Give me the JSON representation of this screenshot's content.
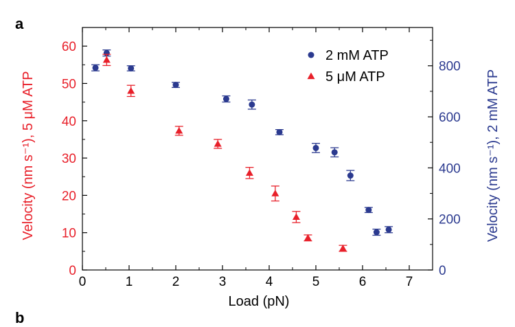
{
  "panels": {
    "a": "a",
    "b": "b"
  },
  "chart_data": {
    "type": "scatter",
    "xlabel": "Load (pN)",
    "xlim": [
      0,
      7.5
    ],
    "xticks": [
      0,
      1,
      2,
      3,
      4,
      5,
      6,
      7
    ],
    "ylabel_left": "Velocity (nm s⁻¹), 5 μM ATP",
    "ylim_left": [
      0,
      65
    ],
    "yticks_left": [
      0,
      10,
      20,
      30,
      40,
      50,
      60
    ],
    "ylabel_right": "Velocity (nm s⁻¹), 2 mM ATP",
    "ylim_right": [
      0,
      950
    ],
    "yticks_right": [
      0,
      200,
      400,
      600,
      800
    ],
    "legend_position": "top-right",
    "grid": false,
    "series": [
      {
        "name": "2 mM ATP",
        "axis": "right",
        "marker": "circle",
        "color": "#2b3a8f",
        "points": [
          {
            "x": 0.28,
            "y": 792,
            "err": 12
          },
          {
            "x": 0.52,
            "y": 850,
            "err": 12
          },
          {
            "x": 1.04,
            "y": 790,
            "err": 10
          },
          {
            "x": 2.0,
            "y": 725,
            "err": 10
          },
          {
            "x": 3.08,
            "y": 670,
            "err": 12
          },
          {
            "x": 3.63,
            "y": 648,
            "err": 18
          },
          {
            "x": 4.22,
            "y": 540,
            "err": 10
          },
          {
            "x": 5.0,
            "y": 478,
            "err": 18
          },
          {
            "x": 5.4,
            "y": 461,
            "err": 18
          },
          {
            "x": 5.74,
            "y": 370,
            "err": 20
          },
          {
            "x": 6.13,
            "y": 235,
            "err": 10
          },
          {
            "x": 6.3,
            "y": 148,
            "err": 12
          },
          {
            "x": 6.56,
            "y": 158,
            "err": 12
          }
        ]
      },
      {
        "name": "5 μM ATP",
        "axis": "left",
        "marker": "triangle",
        "color": "#e8202a",
        "points": [
          {
            "x": 0.52,
            "y": 56.3,
            "err": 1.5
          },
          {
            "x": 1.04,
            "y": 48.0,
            "err": 1.5
          },
          {
            "x": 2.07,
            "y": 37.3,
            "err": 1.2
          },
          {
            "x": 2.9,
            "y": 33.8,
            "err": 1.2
          },
          {
            "x": 3.58,
            "y": 26.0,
            "err": 1.5
          },
          {
            "x": 4.13,
            "y": 20.5,
            "err": 2.0
          },
          {
            "x": 4.58,
            "y": 14.2,
            "err": 1.5
          },
          {
            "x": 4.83,
            "y": 8.6,
            "err": 0.8
          },
          {
            "x": 5.58,
            "y": 5.8,
            "err": 0.8
          }
        ]
      }
    ]
  },
  "colors": {
    "left_axis": "#e8202a",
    "right_axis": "#2b3a8f",
    "frame": "#000000"
  }
}
